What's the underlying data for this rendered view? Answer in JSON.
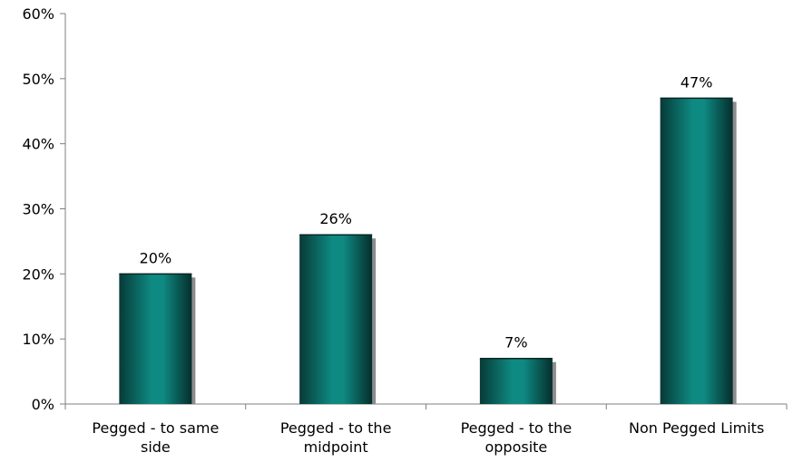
{
  "chart_data": {
    "type": "bar",
    "categories": [
      [
        "Pegged - to same",
        "side"
      ],
      [
        "Pegged - to the",
        "midpoint"
      ],
      [
        "Pegged - to the",
        "opposite"
      ],
      [
        "Non Pegged Limits"
      ]
    ],
    "values": [
      20,
      26,
      7,
      47
    ],
    "data_labels": [
      "20%",
      "26%",
      "7%",
      "47%"
    ],
    "y_ticks": [
      "0%",
      "10%",
      "20%",
      "30%",
      "40%",
      "50%",
      "60%"
    ],
    "ylim": [
      0,
      60
    ],
    "grid": false,
    "legend": "none",
    "colors": {
      "bar_center": "#0e8a82",
      "bar_edge": "#073a37",
      "bar_shadow": "#8c8c8c",
      "axis": "#7f7f7f"
    }
  }
}
